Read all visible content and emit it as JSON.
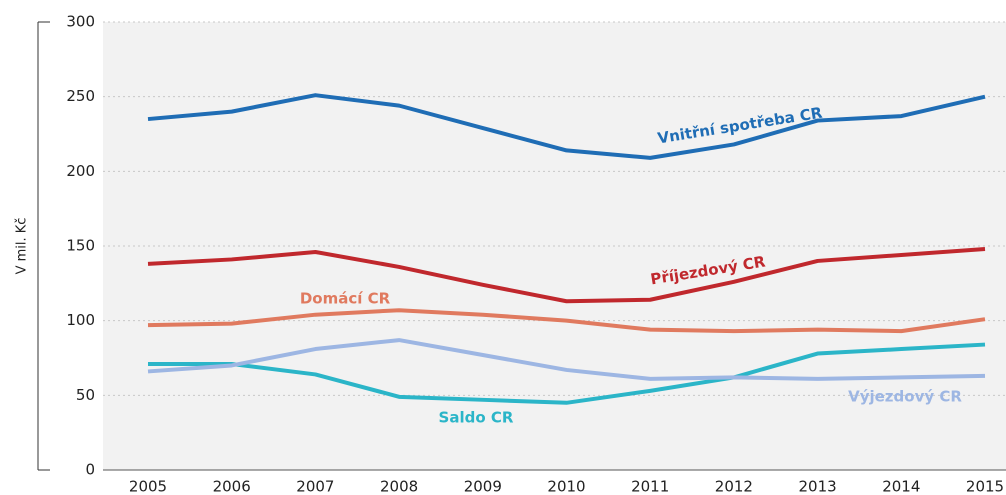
{
  "chart_data": {
    "type": "line",
    "y_label": "V mil. Kč",
    "categories": [
      "2005",
      "2006",
      "2007",
      "2008",
      "2009",
      "2010",
      "2011",
      "2012",
      "2013",
      "2014",
      "2015"
    ],
    "series": [
      {
        "name": "Vnitřní spotřeba CR",
        "color": "#1f6db5",
        "values": [
          235,
          240,
          251,
          244,
          229,
          214,
          209,
          218,
          234,
          237,
          250
        ]
      },
      {
        "name": "Příjezdový CR",
        "color": "#c0282d",
        "values": [
          138,
          141,
          146,
          136,
          124,
          113,
          114,
          126,
          140,
          144,
          148
        ]
      },
      {
        "name": "Domácí CR",
        "color": "#e07a5f",
        "values": [
          97,
          98,
          104,
          107,
          104,
          100,
          94,
          93,
          94,
          93,
          101
        ]
      },
      {
        "name": "Výjezdový CR",
        "color": "#9db6e3",
        "values": [
          66,
          70,
          81,
          87,
          77,
          67,
          61,
          62,
          61,
          62,
          63
        ]
      },
      {
        "name": "Saldo CR",
        "color": "#2bb5c8",
        "values": [
          71,
          71,
          64,
          49,
          47,
          45,
          53,
          62,
          78,
          81,
          84
        ]
      }
    ],
    "ylim": [
      0,
      300
    ],
    "yticks": [
      0,
      50,
      100,
      150,
      200,
      250,
      300
    ],
    "grid": true
  }
}
